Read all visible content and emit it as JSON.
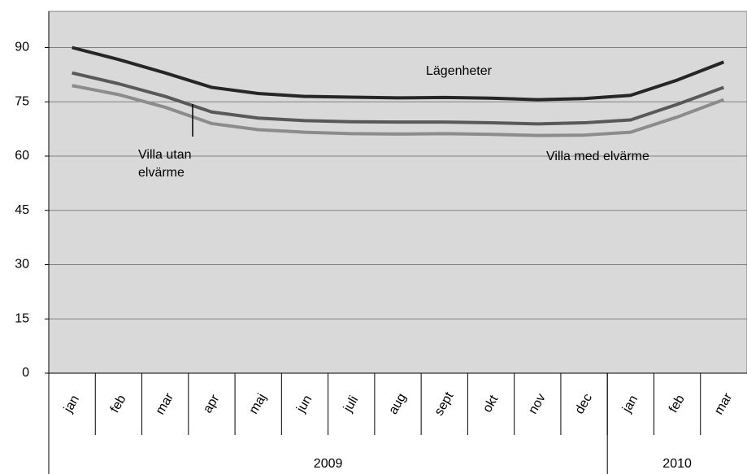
{
  "chart_data": {
    "type": "line",
    "categories": [
      "jan",
      "feb",
      "mar",
      "apr",
      "maj",
      "jun",
      "juli",
      "aug",
      "sept",
      "okt",
      "nov",
      "dec",
      "jan",
      "feb",
      "mar"
    ],
    "groups": [
      {
        "label": "2009",
        "span": 12
      },
      {
        "label": "2010",
        "span": 3
      }
    ],
    "series": [
      {
        "name": "Lägenheter",
        "color": "#262626",
        "values": [
          90,
          86.7,
          83,
          79,
          77.3,
          76.5,
          76.3,
          76.1,
          76.2,
          76,
          75.6,
          75.9,
          76.8,
          81,
          86
        ]
      },
      {
        "name": "Villa utan elvärme",
        "color": "#595959",
        "values": [
          83,
          80,
          76.5,
          72.2,
          70.5,
          69.8,
          69.5,
          69.4,
          69.4,
          69.2,
          68.9,
          69.2,
          70,
          74.3,
          79
        ]
      },
      {
        "name": "Villa med elvärme",
        "color": "#8c8c8c",
        "values": [
          79.5,
          77,
          73.5,
          69,
          67.3,
          66.6,
          66.2,
          66.1,
          66.2,
          66,
          65.7,
          65.8,
          66.6,
          70.8,
          75.6
        ]
      }
    ],
    "ylim": [
      0,
      100
    ],
    "yticks": [
      0,
      15,
      30,
      45,
      60,
      75,
      90
    ],
    "grid": true
  }
}
